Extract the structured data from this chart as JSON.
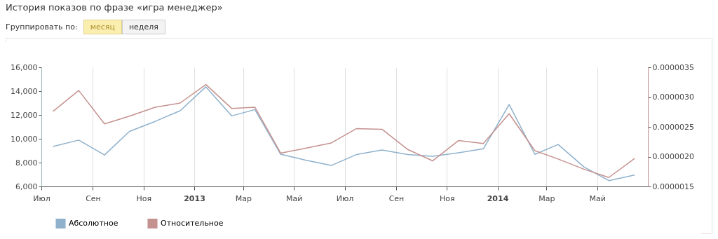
{
  "chart_data": {
    "type": "line",
    "title": "История показов по фразе «игра менеджер»",
    "annotations": [
      "Группировать по:",
      "месяц",
      "неделя"
    ],
    "x": [
      "2012-07-15",
      "2012-08-15",
      "2012-09-15",
      "2012-10-15",
      "2012-11-15",
      "2012-12-15",
      "2013-01-15",
      "2013-02-15",
      "2013-03-15",
      "2013-04-15",
      "2013-05-15",
      "2013-06-15",
      "2013-07-15",
      "2013-08-15",
      "2013-09-15",
      "2013-10-15",
      "2013-11-15",
      "2013-12-15",
      "2014-01-15",
      "2014-02-15",
      "2014-03-15",
      "2014-04-15",
      "2014-05-15",
      "2014-06-15"
    ],
    "series": [
      {
        "name": "Абсолютное",
        "color": "#8fb1cc",
        "values": [
          9350,
          9890,
          8640,
          10620,
          11460,
          12350,
          14360,
          11920,
          12450,
          8700,
          8210,
          7760,
          8670,
          9060,
          8670,
          8530,
          8830,
          9160,
          12880,
          8690,
          9520,
          7640,
          6490,
          6950
        ]
      },
      {
        "name": "Относительное",
        "color": "#c4928f",
        "axis": "y2",
        "values": [
          2.76e-06,
          3.11e-06,
          2.55e-06,
          2.68e-06,
          2.83e-06,
          2.9e-06,
          3.21e-06,
          2.81e-06,
          2.83e-06,
          2.06e-06,
          2.14e-06,
          2.23e-06,
          2.47e-06,
          2.46e-06,
          2.12e-06,
          1.93e-06,
          2.27e-06,
          2.22e-06,
          2.72e-06,
          2.1e-06,
          1.96e-06,
          1.79e-06,
          1.65e-06,
          1.97e-06
        ]
      }
    ],
    "xlim": [
      "2012-07-01",
      "2014-07-01"
    ],
    "xticks": [
      {
        "value": "2012-07-01",
        "label": "Июл"
      },
      {
        "value": "2012-09-01",
        "label": "Сен"
      },
      {
        "value": "2012-11-01",
        "label": "Ноя"
      },
      {
        "value": "2013-01-01",
        "label": "2013"
      },
      {
        "value": "2013-03-01",
        "label": "Мар"
      },
      {
        "value": "2013-05-01",
        "label": "Май"
      },
      {
        "value": "2013-07-01",
        "label": "Июл"
      },
      {
        "value": "2013-09-01",
        "label": "Сен"
      },
      {
        "value": "2013-11-01",
        "label": "Ноя"
      },
      {
        "value": "2014-01-01",
        "label": "2014"
      },
      {
        "value": "2014-03-01",
        "label": "Мар"
      },
      {
        "value": "2014-05-01",
        "label": "Май"
      }
    ],
    "ylim": [
      6000,
      16000
    ],
    "yticks": [
      {
        "value": 6000,
        "label": "6,000"
      },
      {
        "value": 8000,
        "label": "8,000"
      },
      {
        "value": 10000,
        "label": "10,000"
      },
      {
        "value": 12000,
        "label": "12,000"
      },
      {
        "value": 14000,
        "label": "14,000"
      },
      {
        "value": 16000,
        "label": "16,000"
      }
    ],
    "y2lim": [
      1.5e-06,
      3.5e-06
    ],
    "y2ticks": [
      {
        "value": 1.5e-06,
        "label": "0.0000015"
      },
      {
        "value": 2e-06,
        "label": "0.0000020"
      },
      {
        "value": 2.5e-06,
        "label": "0.0000025"
      },
      {
        "value": 3e-06,
        "label": "0.0000030"
      },
      {
        "value": 3.5e-06,
        "label": "0.0000035"
      }
    ],
    "grid": "x",
    "legend": "bottom left"
  }
}
